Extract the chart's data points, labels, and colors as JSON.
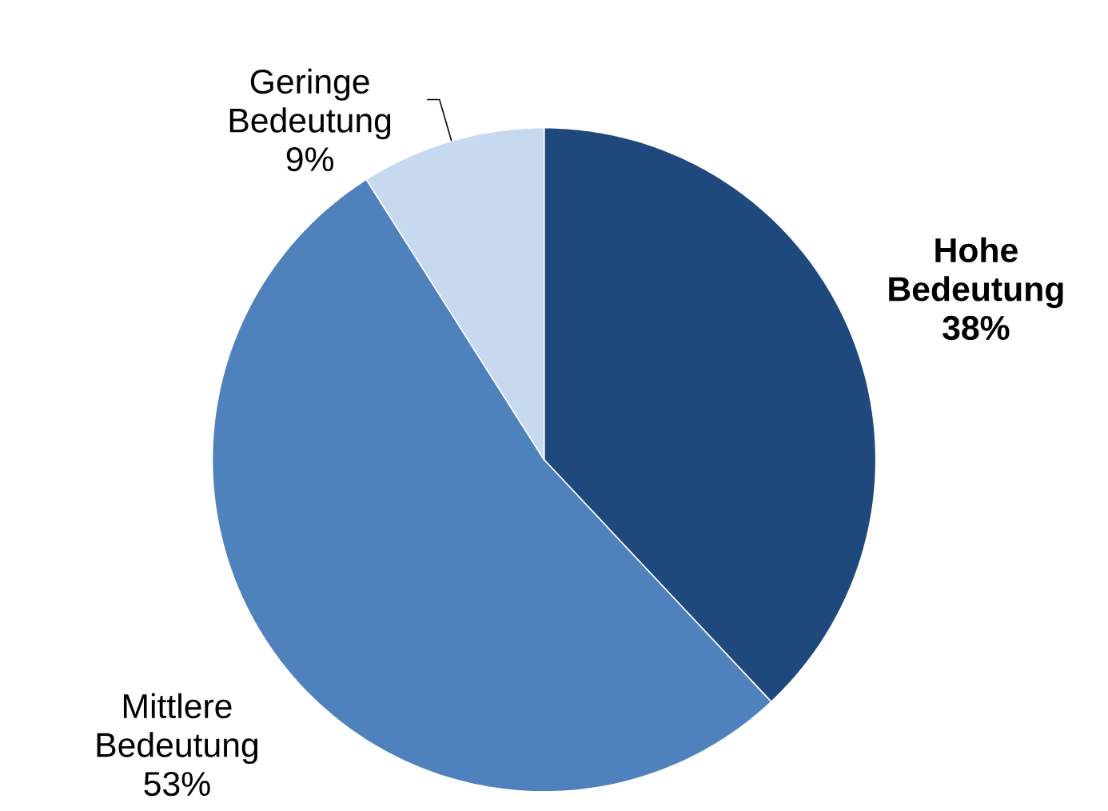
{
  "chart_data": {
    "type": "pie",
    "categories": [
      "**Hohe Bedeutung**",
      "Mittlere Bedeutung",
      "Geringe Bedeutung"
    ],
    "values": [
      38,
      53,
      9
    ],
    "value_labels": [
      "**38%**",
      "53%",
      "9%"
    ],
    "colors": [
      "#1f497d",
      "#4f81bd",
      "#c6d9f1"
    ]
  }
}
